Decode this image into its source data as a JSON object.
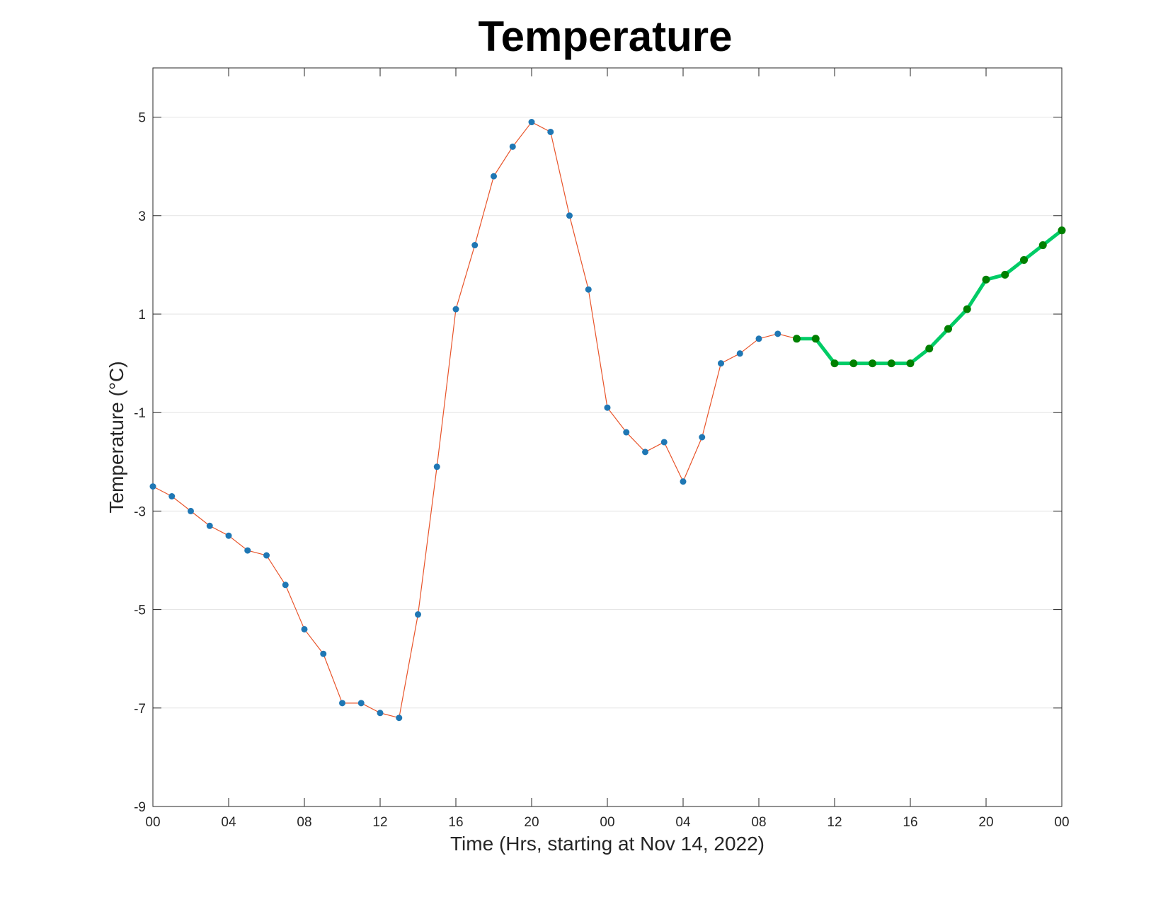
{
  "chart_data": {
    "type": "line",
    "title": "Temperature",
    "xlabel": "Time (Hrs, starting at Nov 14, 2022)",
    "ylabel": "Temperature (°C)",
    "x_unit": "hours",
    "xlim": [
      0,
      48
    ],
    "ylim": [
      -9,
      6
    ],
    "x_ticks": [
      0,
      4,
      8,
      12,
      16,
      20,
      24,
      28,
      32,
      36,
      40,
      44,
      48
    ],
    "x_tick_labels": [
      "00",
      "04",
      "08",
      "12",
      "16",
      "20",
      "00",
      "04",
      "08",
      "12",
      "16",
      "20",
      "00"
    ],
    "y_ticks": [
      -9,
      -7,
      -5,
      -3,
      -1,
      1,
      3,
      5
    ],
    "y_tick_labels": [
      "-9",
      "-7",
      "-5",
      "-3",
      "-1",
      "1",
      "3",
      "5"
    ],
    "grid": "horizontal",
    "series": [
      {
        "color": "#e8542a",
        "marker_color": "#1f77b4",
        "x": [
          0,
          1,
          2,
          3,
          4,
          5,
          6,
          7,
          8,
          9,
          10,
          11,
          12,
          13,
          14,
          15,
          16,
          17,
          18,
          19,
          20,
          21,
          22,
          23,
          24,
          25,
          26,
          27,
          28,
          29,
          30,
          31,
          32,
          33,
          34
        ],
        "values": [
          -2.5,
          -2.7,
          -3.0,
          -3.3,
          -3.5,
          -3.8,
          -3.9,
          -4.5,
          -5.4,
          -5.9,
          -6.9,
          -6.9,
          -7.1,
          -7.2,
          -5.1,
          -2.1,
          1.1,
          2.4,
          3.8,
          4.4,
          4.9,
          4.7,
          3.0,
          1.5,
          -0.9,
          -1.4,
          -1.8,
          -1.6,
          -2.4,
          -1.5,
          0.0,
          0.2,
          0.5,
          0.6,
          0.5
        ]
      },
      {
        "color": "#00cc66",
        "marker_color": "#008000",
        "x": [
          34,
          35,
          36,
          37,
          38,
          39,
          40,
          41,
          42,
          43,
          44,
          45,
          46,
          47,
          48
        ],
        "values": [
          0.5,
          0.5,
          0.0,
          0.0,
          0.0,
          0.0,
          0.0,
          0.3,
          0.7,
          1.1,
          1.7,
          1.8,
          2.1,
          2.4,
          2.7
        ]
      }
    ]
  }
}
